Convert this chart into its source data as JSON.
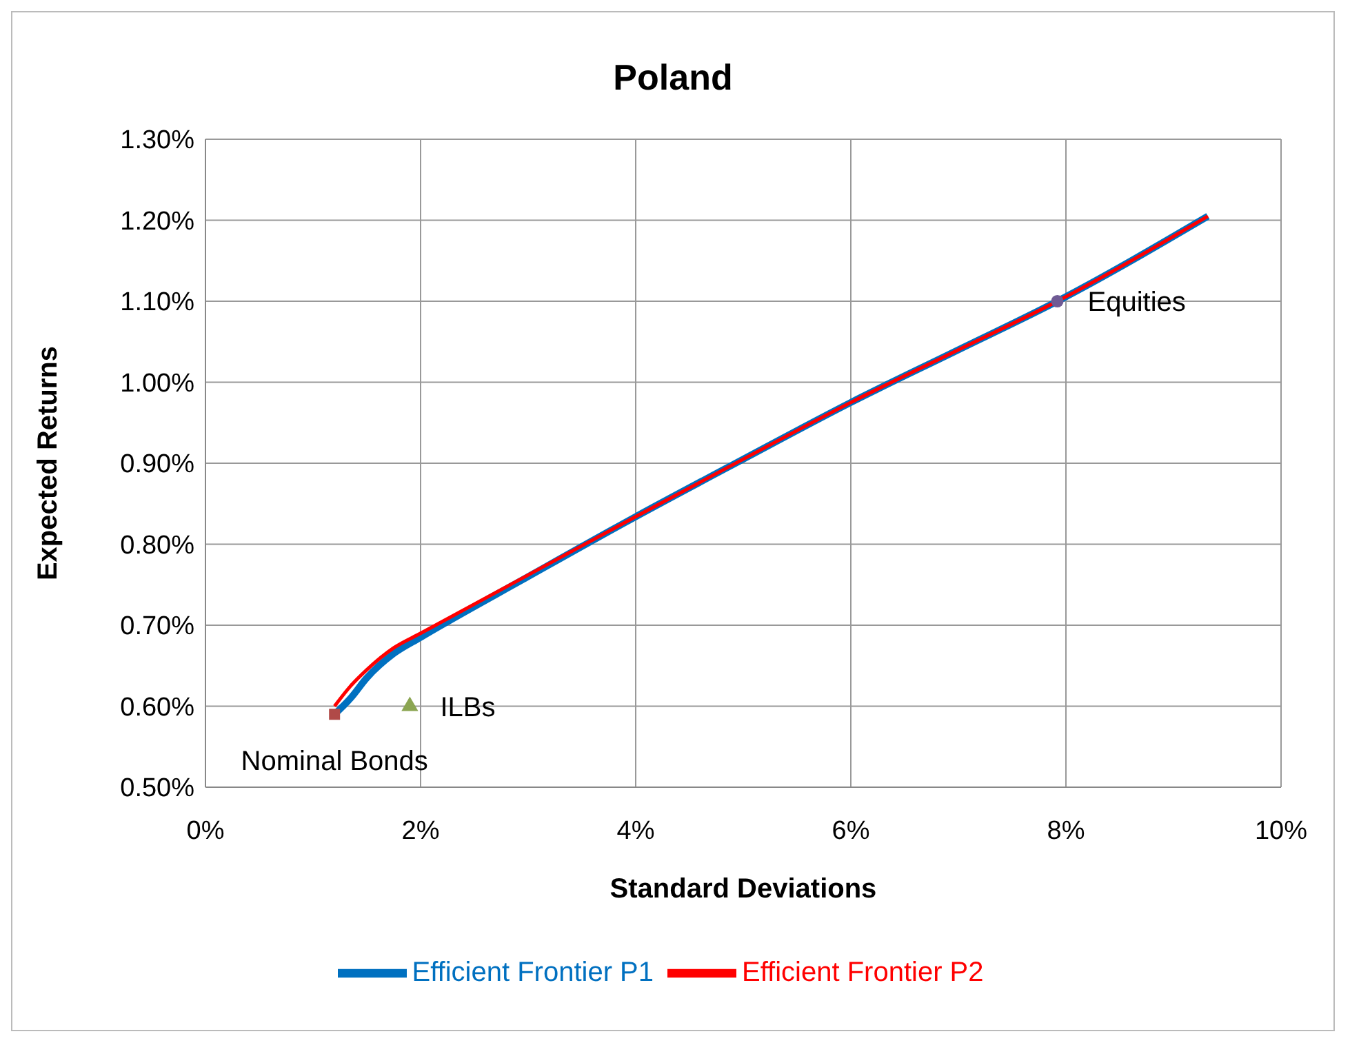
{
  "chart_data": {
    "type": "line",
    "title": "Poland",
    "xlabel": "Standard Deviations",
    "ylabel": "Expected Returns",
    "xlim": [
      0,
      10
    ],
    "xticks": [
      {
        "value": 0,
        "label": "0%"
      },
      {
        "value": 2,
        "label": "2%"
      },
      {
        "value": 4,
        "label": "4%"
      },
      {
        "value": 6,
        "label": "6%"
      },
      {
        "value": 8,
        "label": "8%"
      },
      {
        "value": 10,
        "label": "10%"
      }
    ],
    "ylim": [
      0.5,
      1.3
    ],
    "yticks": [
      {
        "value": 0.5,
        "label": "0.50%"
      },
      {
        "value": 0.6,
        "label": "0.60%"
      },
      {
        "value": 0.7,
        "label": "0.70%"
      },
      {
        "value": 0.8,
        "label": "0.80%"
      },
      {
        "value": 0.9,
        "label": "0.90%"
      },
      {
        "value": 1.0,
        "label": "1.00%"
      },
      {
        "value": 1.1,
        "label": "1.10%"
      },
      {
        "value": 1.2,
        "label": "1.20%"
      },
      {
        "value": 1.3,
        "label": "1.30%"
      }
    ],
    "grid": true,
    "legend": "bottom",
    "line_style": "solid",
    "series": [
      {
        "name": "Efficient Frontier P1",
        "color": "#0070c0",
        "marker": "none",
        "x": [
          1.2,
          1.35,
          1.5,
          1.75,
          2.0,
          3.0,
          4.0,
          5.0,
          6.0,
          7.0,
          7.92,
          9.32
        ],
        "values": [
          0.59,
          0.61,
          0.635,
          0.665,
          0.685,
          0.76,
          0.834,
          0.905,
          0.975,
          1.04,
          1.1,
          1.205
        ]
      },
      {
        "name": "Efficient Frontier P2",
        "color": "#ff0000",
        "marker": "none",
        "x": [
          1.2,
          1.35,
          1.5,
          1.75,
          2.0,
          3.0,
          4.0,
          5.0,
          6.0,
          7.0,
          7.92,
          9.32
        ],
        "values": [
          0.6,
          0.625,
          0.645,
          0.672,
          0.69,
          0.762,
          0.834,
          0.905,
          0.975,
          1.04,
          1.1,
          1.205
        ]
      },
      {
        "type": "scatter",
        "color": "#b04a48",
        "marker": "square",
        "x": [
          1.2
        ],
        "values": [
          0.59
        ]
      },
      {
        "type": "scatter",
        "color": "#8ba552",
        "marker": "triangle",
        "x": [
          1.9
        ],
        "values": [
          0.6
        ]
      },
      {
        "type": "scatter",
        "color": "#6f5a94",
        "marker": "circle",
        "x": [
          7.92
        ],
        "values": [
          1.1
        ]
      }
    ],
    "annotations": [
      {
        "text": "Nominal Bonds",
        "x": 1.2,
        "y": 0.59
      },
      {
        "text": "ILBs",
        "x": 1.9,
        "y": 0.6
      },
      {
        "text": "Equities",
        "x": 7.92,
        "y": 1.1
      }
    ]
  }
}
